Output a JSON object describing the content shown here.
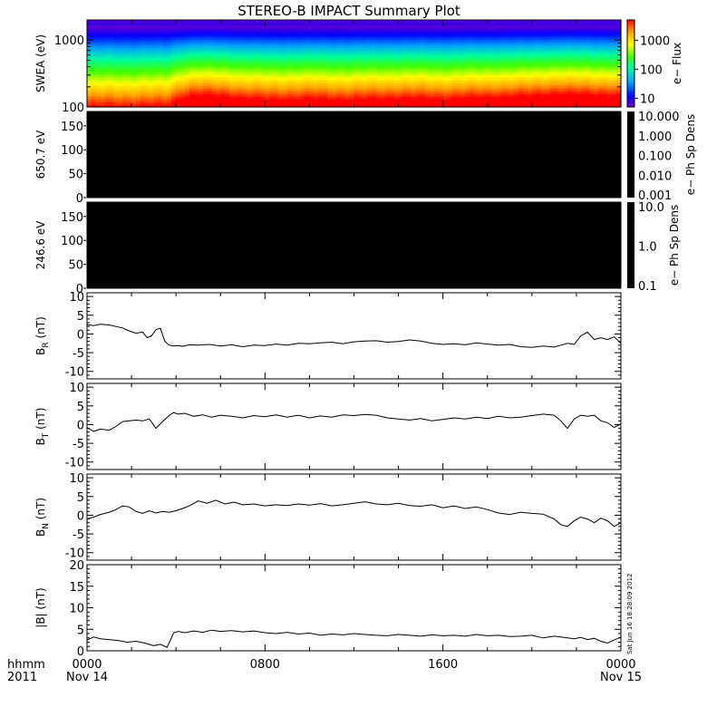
{
  "title": "STEREO-B IMPACT Summary Plot",
  "footer": {
    "hhmm": "hhmm",
    "year": "2011",
    "stamp": "Sat Jun 16 18:28:09 2012"
  },
  "x_axis": {
    "ticks": [
      {
        "hour": 0,
        "label": "0000",
        "sublabel": "Nov 14"
      },
      {
        "hour": 8,
        "label": "0800",
        "sublabel": ""
      },
      {
        "hour": 16,
        "label": "1600",
        "sublabel": ""
      },
      {
        "hour": 24,
        "label": "0000",
        "sublabel": "Nov 15"
      }
    ],
    "range_hours": [
      0,
      24
    ]
  },
  "chart_data": [
    {
      "id": "swea",
      "type": "heatmap",
      "ylabel": "SWEA (eV)",
      "ylog": true,
      "ylim": [
        100,
        2000
      ],
      "yticks": [
        {
          "v": 100,
          "label": "100"
        },
        {
          "v": 1000,
          "label": "1000"
        }
      ],
      "colorbar": {
        "label": "e− Flux",
        "log": true,
        "range": [
          5,
          5000
        ],
        "ticks": [
          {
            "v": 10,
            "label": "10"
          },
          {
            "v": 100,
            "label": "100"
          },
          {
            "v": 1000,
            "label": "1000"
          }
        ],
        "colormap": [
          "#7a00c8",
          "#0000ff",
          "#00a0ff",
          "#00ffa0",
          "#40ff00",
          "#ffff00",
          "#ffa000",
          "#ff0000"
        ]
      },
      "transition_hour": 4.0,
      "enhancement_profile": [
        [
          0,
          0.0
        ],
        [
          3.6,
          0.05
        ],
        [
          4.2,
          0.55
        ],
        [
          4.8,
          0.75
        ],
        [
          6.0,
          0.7
        ],
        [
          7.0,
          0.55
        ],
        [
          8.0,
          0.45
        ],
        [
          10.0,
          0.5
        ],
        [
          12.0,
          0.45
        ],
        [
          14.0,
          0.55
        ],
        [
          16.0,
          0.5
        ],
        [
          18.0,
          0.6
        ],
        [
          20.0,
          0.7
        ],
        [
          21.0,
          0.85
        ],
        [
          22.0,
          0.8
        ],
        [
          24.0,
          0.75
        ]
      ]
    },
    {
      "id": "pad650",
      "type": "heatmap",
      "ylabel": "650.7 eV",
      "ylim": [
        0,
        180
      ],
      "yticks": [
        {
          "v": 0,
          "label": "0"
        },
        {
          "v": 50,
          "label": "50"
        },
        {
          "v": 100,
          "label": "100"
        },
        {
          "v": 150,
          "label": "150"
        }
      ],
      "fill": "#000000",
      "colorbar": {
        "label": "e− Ph Sp Dens",
        "ticks": [
          "10.000",
          "1.000",
          "0.100",
          "0.010",
          "0.001"
        ]
      }
    },
    {
      "id": "pad246",
      "type": "heatmap",
      "ylabel": "246.6 eV",
      "ylim": [
        0,
        180
      ],
      "yticks": [
        {
          "v": 0,
          "label": "0"
        },
        {
          "v": 50,
          "label": "50"
        },
        {
          "v": 100,
          "label": "100"
        },
        {
          "v": 150,
          "label": "150"
        }
      ],
      "fill": "#000000",
      "colorbar": {
        "label": "e− Ph Sp Dens",
        "ticks": [
          "10.0",
          "1.0",
          "0.1"
        ]
      }
    },
    {
      "id": "br",
      "type": "line",
      "ylabel_main": "B",
      "ylabel_sub": "R",
      "ylabel_unit": " (nT)",
      "ylim": [
        -12,
        11
      ],
      "yticks": [
        -10,
        -5,
        0,
        5,
        10
      ],
      "x_hours": [
        0,
        0.3,
        0.6,
        1.0,
        1.3,
        1.6,
        1.9,
        2.2,
        2.5,
        2.7,
        2.9,
        3.1,
        3.3,
        3.5,
        3.7,
        3.9,
        4.1,
        4.3,
        4.6,
        5.0,
        5.5,
        6.0,
        6.5,
        7.0,
        7.5,
        8.0,
        8.5,
        9.0,
        9.5,
        10.0,
        10.5,
        11.0,
        11.5,
        12.0,
        12.5,
        13.0,
        13.5,
        14.0,
        14.5,
        15.0,
        15.5,
        16.0,
        16.5,
        17.0,
        17.5,
        18.0,
        18.5,
        19.0,
        19.5,
        20.0,
        20.5,
        21.0,
        21.3,
        21.6,
        21.9,
        22.2,
        22.5,
        22.8,
        23.1,
        23.4,
        23.7,
        24.0
      ],
      "values": [
        2.5,
        2.2,
        2.6,
        2.4,
        2.0,
        1.6,
        0.8,
        0.2,
        0.5,
        -1.0,
        -0.5,
        1.2,
        1.5,
        -2.0,
        -3.0,
        -3.2,
        -3.1,
        -3.3,
        -2.9,
        -3.0,
        -2.8,
        -3.2,
        -2.9,
        -3.4,
        -3.0,
        -3.1,
        -2.7,
        -3.0,
        -2.5,
        -2.6,
        -2.4,
        -2.2,
        -2.6,
        -2.1,
        -1.9,
        -1.8,
        -2.2,
        -2.0,
        -1.6,
        -1.9,
        -2.5,
        -2.8,
        -2.6,
        -2.9,
        -2.4,
        -2.7,
        -3.0,
        -2.8,
        -3.4,
        -3.6,
        -3.2,
        -3.5,
        -3.0,
        -2.5,
        -2.8,
        -0.5,
        0.5,
        -1.5,
        -1.0,
        -1.5,
        -0.8,
        -2.5
      ]
    },
    {
      "id": "bt",
      "type": "line",
      "ylabel_main": "B",
      "ylabel_sub": "T",
      "ylabel_unit": " (nT)",
      "ylim": [
        -12,
        11
      ],
      "yticks": [
        -10,
        -5,
        0,
        5,
        10
      ],
      "x_hours": [
        0,
        0.3,
        0.6,
        1.0,
        1.3,
        1.6,
        1.9,
        2.2,
        2.5,
        2.8,
        3.1,
        3.4,
        3.7,
        3.9,
        4.1,
        4.4,
        4.8,
        5.2,
        5.6,
        6.0,
        6.5,
        7.0,
        7.5,
        8.0,
        8.5,
        9.0,
        9.5,
        10.0,
        10.5,
        11.0,
        11.5,
        12.0,
        12.5,
        13.0,
        13.5,
        14.0,
        14.5,
        15.0,
        15.5,
        16.0,
        16.5,
        17.0,
        17.5,
        18.0,
        18.5,
        19.0,
        19.5,
        20.0,
        20.5,
        21.0,
        21.3,
        21.6,
        21.9,
        22.2,
        22.5,
        22.8,
        23.1,
        23.4,
        23.7,
        24.0
      ],
      "values": [
        -0.8,
        -1.8,
        -1.2,
        -1.5,
        -0.5,
        0.8,
        1.0,
        1.2,
        1.0,
        1.5,
        -1.0,
        0.8,
        2.5,
        3.2,
        2.8,
        3.0,
        2.2,
        2.6,
        2.0,
        2.5,
        2.2,
        1.8,
        2.4,
        2.1,
        2.6,
        2.0,
        2.5,
        1.8,
        2.3,
        2.0,
        2.6,
        2.4,
        2.7,
        2.5,
        1.8,
        1.5,
        1.2,
        1.6,
        1.0,
        1.4,
        1.8,
        1.5,
        2.0,
        1.6,
        2.2,
        1.8,
        2.0,
        2.4,
        2.8,
        2.5,
        1.0,
        -1.0,
        1.5,
        2.5,
        2.2,
        2.5,
        1.0,
        0.5,
        -0.8,
        0.2
      ]
    },
    {
      "id": "bn",
      "type": "line",
      "ylabel_main": "B",
      "ylabel_sub": "N",
      "ylabel_unit": " (nT)",
      "ylim": [
        -12,
        11
      ],
      "yticks": [
        -10,
        -5,
        0,
        5,
        10
      ],
      "x_hours": [
        0,
        0.3,
        0.6,
        1.0,
        1.3,
        1.6,
        1.9,
        2.2,
        2.5,
        2.8,
        3.1,
        3.4,
        3.7,
        4.0,
        4.3,
        4.6,
        5.0,
        5.4,
        5.8,
        6.2,
        6.6,
        7.0,
        7.5,
        8.0,
        8.5,
        9.0,
        9.5,
        10.0,
        10.5,
        11.0,
        11.5,
        12.0,
        12.5,
        13.0,
        13.5,
        14.0,
        14.5,
        15.0,
        15.5,
        16.0,
        16.5,
        17.0,
        17.5,
        18.0,
        18.5,
        19.0,
        19.5,
        20.0,
        20.5,
        21.0,
        21.3,
        21.6,
        21.9,
        22.2,
        22.5,
        22.8,
        23.1,
        23.4,
        23.7,
        24.0
      ],
      "values": [
        -1.0,
        -0.5,
        0.2,
        0.8,
        1.5,
        2.5,
        2.2,
        1.0,
        0.5,
        1.2,
        0.6,
        1.0,
        0.8,
        1.2,
        1.8,
        2.5,
        3.8,
        3.2,
        4.0,
        3.0,
        3.5,
        2.8,
        3.0,
        2.5,
        2.8,
        2.6,
        3.0,
        2.7,
        3.1,
        2.5,
        2.8,
        3.2,
        3.6,
        3.0,
        2.8,
        3.2,
        2.6,
        2.4,
        2.8,
        2.0,
        2.5,
        1.8,
        2.2,
        1.5,
        0.6,
        0.2,
        0.8,
        0.5,
        0.3,
        -1.0,
        -2.5,
        -3.0,
        -1.5,
        -0.5,
        -1.0,
        -2.0,
        -0.8,
        -1.5,
        -3.0,
        -2.0
      ]
    },
    {
      "id": "bmag",
      "type": "line",
      "ylabel_main": "|B|",
      "ylabel_sub": "",
      "ylabel_unit": " (nT)",
      "ylim": [
        0,
        20
      ],
      "yticks": [
        0,
        5,
        10,
        15,
        20
      ],
      "x_hours": [
        0,
        0.3,
        0.6,
        1.0,
        1.4,
        1.8,
        2.2,
        2.6,
        3.0,
        3.3,
        3.6,
        3.9,
        4.1,
        4.4,
        4.8,
        5.2,
        5.6,
        6.0,
        6.5,
        7.0,
        7.5,
        8.0,
        8.5,
        9.0,
        9.5,
        10.0,
        10.5,
        11.0,
        11.5,
        12.0,
        12.5,
        13.0,
        13.5,
        14.0,
        14.5,
        15.0,
        15.5,
        16.0,
        16.5,
        17.0,
        17.5,
        18.0,
        18.5,
        19.0,
        19.5,
        20.0,
        20.5,
        21.0,
        21.3,
        21.6,
        21.9,
        22.2,
        22.5,
        22.8,
        23.1,
        23.4,
        23.7,
        24.0
      ],
      "values": [
        2.5,
        3.2,
        2.8,
        2.6,
        2.4,
        2.0,
        2.2,
        1.8,
        1.2,
        1.5,
        0.8,
        4.2,
        4.5,
        4.2,
        4.6,
        4.3,
        4.8,
        4.5,
        4.7,
        4.4,
        4.6,
        4.2,
        4.0,
        4.3,
        3.9,
        4.1,
        3.6,
        3.9,
        3.7,
        4.0,
        3.8,
        3.6,
        3.5,
        3.8,
        3.6,
        3.4,
        3.7,
        3.5,
        3.6,
        3.4,
        3.8,
        3.5,
        3.6,
        3.3,
        3.4,
        3.6,
        3.0,
        3.4,
        3.2,
        3.0,
        2.8,
        3.1,
        2.6,
        2.9,
        2.2,
        1.8,
        2.5,
        3.2
      ]
    }
  ]
}
